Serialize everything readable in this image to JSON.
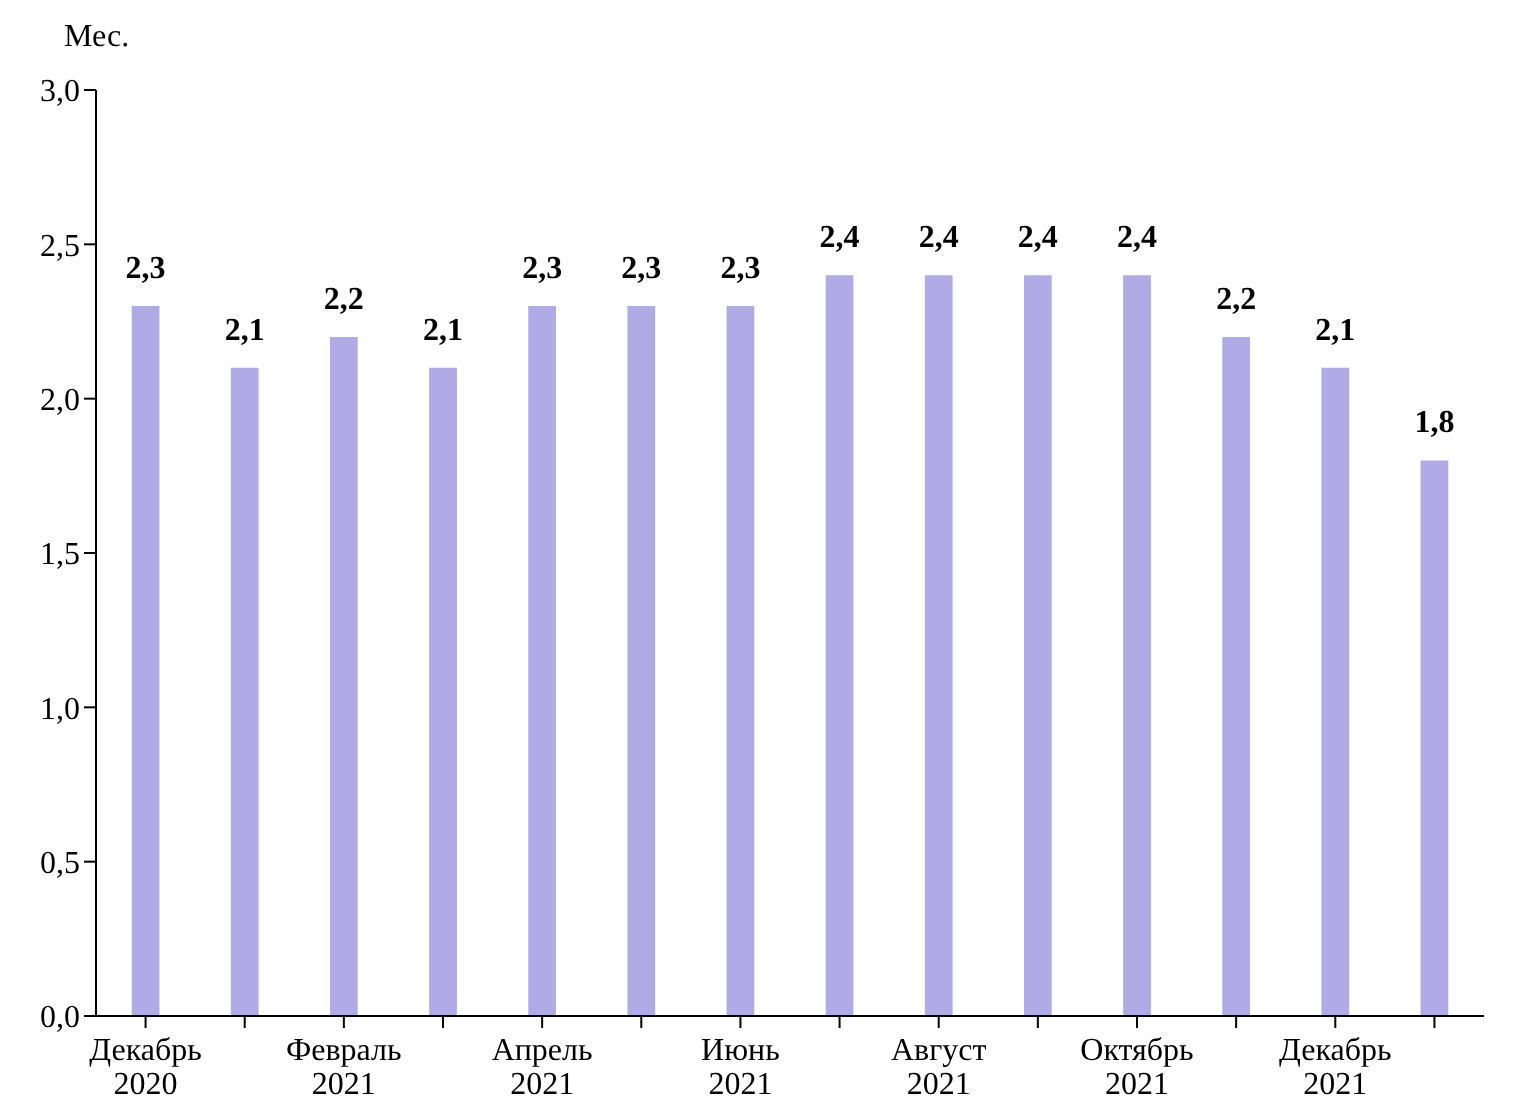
{
  "chart_data": {
    "type": "bar",
    "ylabel": "Мес.",
    "categories": [
      "Декабрь 2020",
      null,
      "Февраль 2021",
      null,
      "Апрель 2021",
      null,
      "Июнь 2021",
      null,
      "Август 2021",
      null,
      "Октябрь 2021",
      null,
      "Декабрь 2021",
      null
    ],
    "values": [
      2.3,
      2.1,
      2.2,
      2.1,
      2.3,
      2.3,
      2.3,
      2.4,
      2.4,
      2.4,
      2.4,
      2.2,
      2.1,
      1.8
    ],
    "value_labels": [
      "2,3",
      "2,1",
      "2,2",
      "2,1",
      "2,3",
      "2,3",
      "2,3",
      "2,4",
      "2,4",
      "2,4",
      "2,4",
      "2,2",
      "2,1",
      "1,8"
    ],
    "color": "#b0abe6",
    "ylim": [
      0,
      3
    ],
    "yticks": [
      {
        "value": 0,
        "label": "0,0"
      },
      {
        "value": 0.5,
        "label": "0,5"
      },
      {
        "value": 1,
        "label": "1,0"
      },
      {
        "value": 1.5,
        "label": "1,5"
      },
      {
        "value": 2,
        "label": "2,0"
      },
      {
        "value": 2.5,
        "label": "2,5"
      },
      {
        "value": 3,
        "label": "3,0"
      }
    ],
    "grid": false,
    "legend": false
  }
}
